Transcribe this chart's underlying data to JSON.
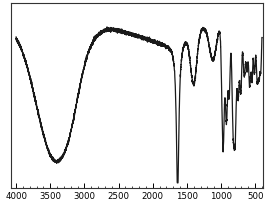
{
  "x_min": 400,
  "x_max": 4000,
  "x_ticks": [
    4000,
    3500,
    3000,
    2500,
    2000,
    1500,
    1000,
    500
  ],
  "line_color": "#1a1a1a",
  "background_color": "#ffffff",
  "linewidth": 0.9,
  "ylim": [
    0.0,
    1.0
  ],
  "has_border": true
}
